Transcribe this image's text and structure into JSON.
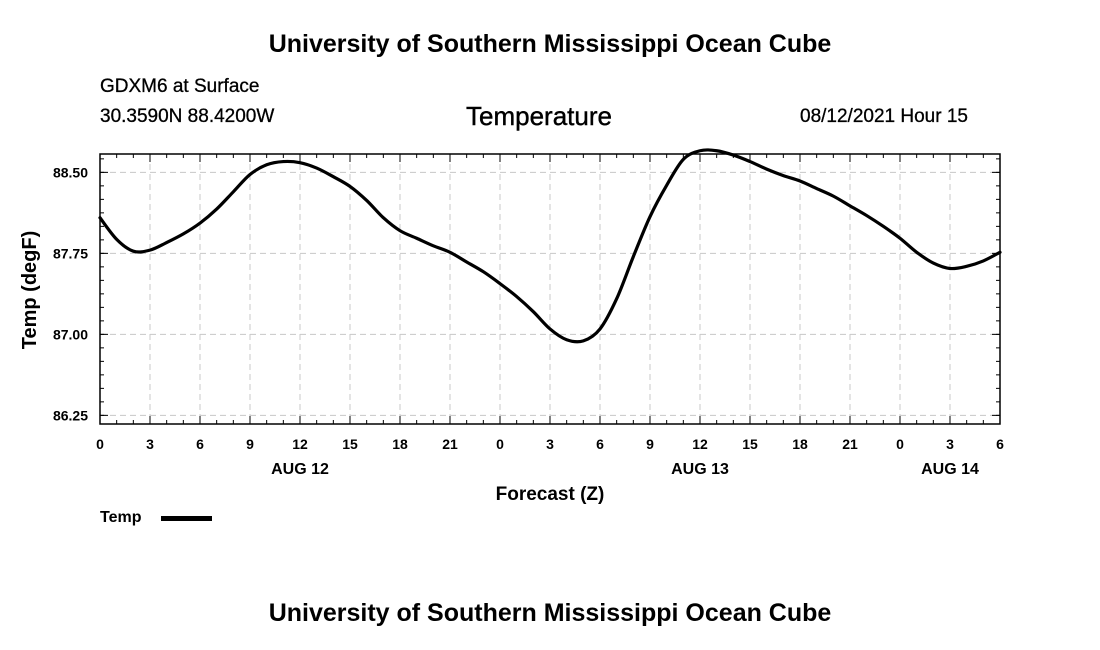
{
  "header": {
    "title": "University of Southern Mississippi Ocean Cube",
    "station": "GDXM6 at Surface",
    "coordinates": "30.3590N  88.4200W",
    "variable_title": "Temperature",
    "datetime": "08/12/2021 Hour 15"
  },
  "footer": {
    "title": "University of Southern Mississippi Ocean Cube"
  },
  "legend": {
    "label": "Temp",
    "line_color": "#000000"
  },
  "chart_data": {
    "type": "line",
    "title": "Temperature",
    "xlabel": "Forecast (Z)",
    "ylabel": "Temp (degF)",
    "xlim": [
      0,
      54
    ],
    "ylim": [
      86.17,
      88.67
    ],
    "yticks": [
      86.25,
      87.0,
      87.75,
      88.5
    ],
    "ytick_labels": [
      "86.25",
      "87.00",
      "87.75",
      "88.50"
    ],
    "xticks": [
      0,
      3,
      6,
      9,
      12,
      15,
      18,
      21,
      24,
      27,
      30,
      33,
      36,
      39,
      42,
      45,
      48,
      51,
      54
    ],
    "xtick_labels": [
      "0",
      "3",
      "6",
      "9",
      "12",
      "15",
      "18",
      "21",
      "0",
      "3",
      "6",
      "9",
      "12",
      "15",
      "18",
      "21",
      "0",
      "3",
      "6"
    ],
    "date_labels": [
      {
        "x": 12,
        "label": "AUG 12"
      },
      {
        "x": 36,
        "label": "AUG 13"
      },
      {
        "x": 51,
        "label": "AUG 14"
      }
    ],
    "grid": true,
    "series": [
      {
        "name": "Temp",
        "color": "#000000",
        "x": [
          0,
          1,
          2,
          3,
          4,
          5,
          6,
          7,
          8,
          9,
          10,
          11,
          12,
          13,
          14,
          15,
          16,
          17,
          18,
          19,
          20,
          21,
          22,
          23,
          24,
          25,
          26,
          27,
          28,
          29,
          30,
          31,
          32,
          33,
          34,
          35,
          36,
          37,
          38,
          39,
          40,
          41,
          42,
          43,
          44,
          45,
          46,
          47,
          48,
          49,
          50,
          51,
          52,
          53,
          54
        ],
        "values": [
          88.08,
          87.88,
          87.77,
          87.78,
          87.85,
          87.93,
          88.03,
          88.16,
          88.32,
          88.48,
          88.57,
          88.6,
          88.59,
          88.54,
          88.46,
          88.37,
          88.24,
          88.08,
          87.96,
          87.89,
          87.82,
          87.76,
          87.67,
          87.58,
          87.47,
          87.35,
          87.21,
          87.05,
          86.95,
          86.94,
          87.05,
          87.33,
          87.72,
          88.09,
          88.38,
          88.62,
          88.7,
          88.7,
          88.66,
          88.6,
          88.53,
          88.47,
          88.42,
          88.35,
          88.28,
          88.19,
          88.1,
          88.0,
          87.89,
          87.76,
          87.66,
          87.61,
          87.63,
          87.68,
          87.76
        ]
      }
    ]
  }
}
